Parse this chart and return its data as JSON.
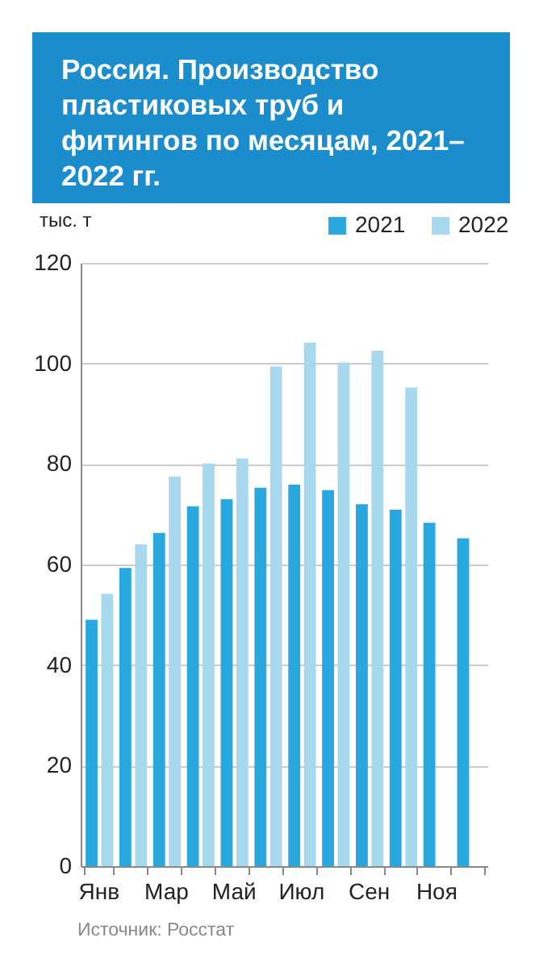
{
  "chart_data": {
    "type": "bar",
    "title": "Россия. Производство пластиковых труб и фитингов по месяцам, 2021–2022 гг.",
    "ylabel": "тыс. т",
    "categories": [
      "Янв",
      null,
      "Мар",
      null,
      "Май",
      null,
      "Июл",
      null,
      "Сен",
      null,
      "Ноя",
      null
    ],
    "series": [
      {
        "name": "2021",
        "color": "#29a8df",
        "values": [
          49.0,
          59.3,
          66.3,
          71.6,
          73.0,
          75.3,
          75.9,
          74.8,
          72.0,
          70.9,
          68.3,
          65.2
        ]
      },
      {
        "name": "2022",
        "color": "#a8d8ee",
        "values": [
          54.2,
          64.0,
          77.5,
          80.1,
          81.1,
          99.4,
          104.1,
          100.2,
          102.5,
          95.2,
          null,
          null
        ]
      }
    ],
    "ylim": [
      0,
      120
    ],
    "yticks": [
      0,
      20,
      40,
      60,
      80,
      100,
      120
    ],
    "grid": "y",
    "legend": "top right",
    "annotations": [
      "Источник: Росстат"
    ]
  }
}
